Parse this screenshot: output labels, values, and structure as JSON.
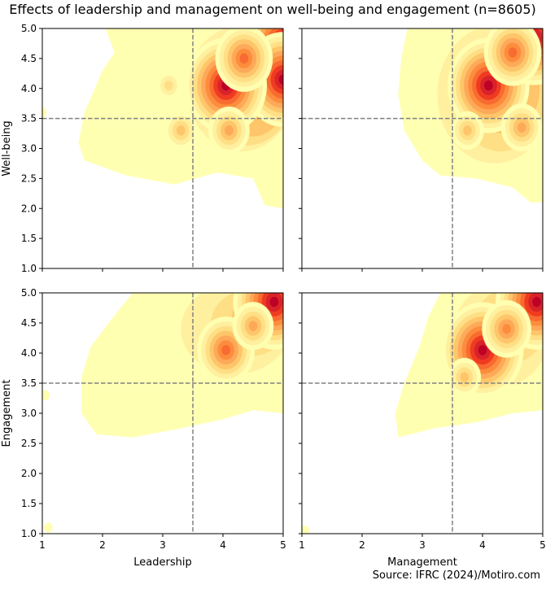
{
  "figure": {
    "title": "Effects of leadership and management on well-being and engagement (n=8605)",
    "source": "Source: IFRC (2024)/Motiro.com"
  },
  "colors": {
    "palette": [
      "#ffffb2",
      "#fff0a0",
      "#ffdf85",
      "#fec56a",
      "#fda95a",
      "#fd8d3c",
      "#f86b31",
      "#f03b20",
      "#d9232a",
      "#bd0026"
    ],
    "threshold_line": "#808080"
  },
  "chart_data": [
    {
      "type": "heatmap",
      "subtype": "kde-contour",
      "position": "top-left",
      "xlabel": "",
      "ylabel": "Well-being",
      "xlim": [
        1,
        5
      ],
      "ylim": [
        1,
        5
      ],
      "xticks": [
        1,
        2,
        3,
        4,
        5
      ],
      "yticks": [
        "1.0",
        "1.5",
        "2.0",
        "2.5",
        "3.0",
        "3.5",
        "4.0",
        "4.5",
        "5.0"
      ],
      "show_xticklabels": false,
      "show_yticklabels": true,
      "reference_lines": {
        "x": 3.5,
        "y": 3.5
      },
      "peaks": [
        {
          "x": 5.0,
          "y": 4.75,
          "level": 9
        },
        {
          "x": 5.0,
          "y": 4.15,
          "level": 9
        },
        {
          "x": 4.05,
          "y": 4.05,
          "level": 9
        },
        {
          "x": 4.35,
          "y": 4.5,
          "level": 6
        },
        {
          "x": 4.1,
          "y": 3.3,
          "level": 4
        },
        {
          "x": 3.3,
          "y": 3.3,
          "level": 3
        },
        {
          "x": 3.1,
          "y": 4.05,
          "level": 2
        },
        {
          "x": 1.0,
          "y": 3.6,
          "level": 0
        }
      ]
    },
    {
      "type": "heatmap",
      "subtype": "kde-contour",
      "position": "top-right",
      "xlabel": "",
      "ylabel": "",
      "xlim": [
        1,
        5
      ],
      "ylim": [
        1,
        5
      ],
      "xticks": [
        1,
        2,
        3,
        4,
        5
      ],
      "yticks": [
        "1.0",
        "1.5",
        "2.0",
        "2.5",
        "3.0",
        "3.5",
        "4.0",
        "4.5",
        "5.0"
      ],
      "show_xticklabels": false,
      "show_yticklabels": false,
      "reference_lines": {
        "x": 3.5,
        "y": 3.5
      },
      "peaks": [
        {
          "x": 4.1,
          "y": 4.05,
          "level": 9
        },
        {
          "x": 4.85,
          "y": 4.85,
          "level": 9
        },
        {
          "x": 4.5,
          "y": 4.6,
          "level": 6
        },
        {
          "x": 4.65,
          "y": 3.35,
          "level": 4
        },
        {
          "x": 3.75,
          "y": 3.3,
          "level": 3
        }
      ]
    },
    {
      "type": "heatmap",
      "subtype": "kde-contour",
      "position": "bottom-left",
      "xlabel": "Leadership",
      "ylabel": "Engagement",
      "xlim": [
        1,
        5
      ],
      "ylim": [
        1,
        5
      ],
      "xticks": [
        1,
        2,
        3,
        4,
        5
      ],
      "yticks": [
        "1.0",
        "1.5",
        "2.0",
        "2.5",
        "3.0",
        "3.5",
        "4.0",
        "4.5",
        "5.0"
      ],
      "show_xticklabels": true,
      "show_yticklabels": true,
      "reference_lines": {
        "x": 3.5,
        "y": 3.5
      },
      "peaks": [
        {
          "x": 4.85,
          "y": 4.85,
          "level": 9
        },
        {
          "x": 4.05,
          "y": 4.05,
          "level": 6
        },
        {
          "x": 4.5,
          "y": 4.45,
          "level": 4
        },
        {
          "x": 1.05,
          "y": 3.3,
          "level": 0
        },
        {
          "x": 1.1,
          "y": 1.1,
          "level": 0
        }
      ]
    },
    {
      "type": "heatmap",
      "subtype": "kde-contour",
      "position": "bottom-right",
      "xlabel": "Management",
      "ylabel": "",
      "xlim": [
        1,
        5
      ],
      "ylim": [
        1,
        5
      ],
      "xticks": [
        1,
        2,
        3,
        4,
        5
      ],
      "yticks": [
        "1.0",
        "1.5",
        "2.0",
        "2.5",
        "3.0",
        "3.5",
        "4.0",
        "4.5",
        "5.0"
      ],
      "show_xticklabels": true,
      "show_yticklabels": false,
      "reference_lines": {
        "x": 3.5,
        "y": 3.5
      },
      "peaks": [
        {
          "x": 4.9,
          "y": 4.85,
          "level": 9
        },
        {
          "x": 4.0,
          "y": 4.05,
          "level": 9
        },
        {
          "x": 4.4,
          "y": 4.4,
          "level": 5
        },
        {
          "x": 3.7,
          "y": 3.6,
          "level": 3
        },
        {
          "x": 1.05,
          "y": 1.05,
          "level": 0
        }
      ]
    }
  ]
}
